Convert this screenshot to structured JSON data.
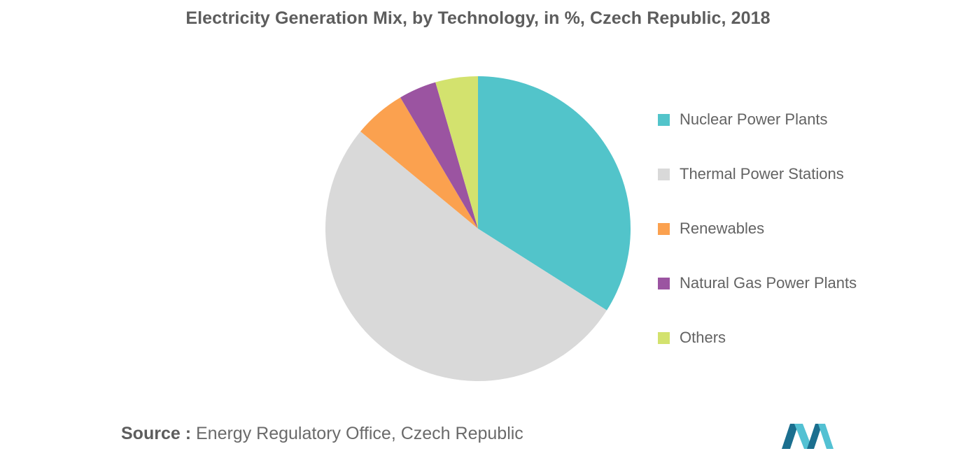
{
  "chart_data": {
    "type": "pie",
    "title": "Electricity Generation Mix, by Technology, in %, Czech Republic, 2018",
    "categories": [
      "Nuclear Power Plants",
      "Thermal Power Stations",
      "Renewables",
      "Natural Gas Power Plants",
      "Others"
    ],
    "values": [
      34,
      52,
      5.5,
      4,
      4.5
    ],
    "colors": [
      "#52c4ca",
      "#d9d9d9",
      "#fba14f",
      "#9b54a1",
      "#d3e26e"
    ],
    "legend_position": "right"
  },
  "source": {
    "prefix": "Source :",
    "text": "Energy Regulatory Office, Czech Republic"
  },
  "logo": {
    "icon": "mordor-intelligence-logo",
    "colors": [
      "#1b6f8f",
      "#53c1d3"
    ]
  }
}
